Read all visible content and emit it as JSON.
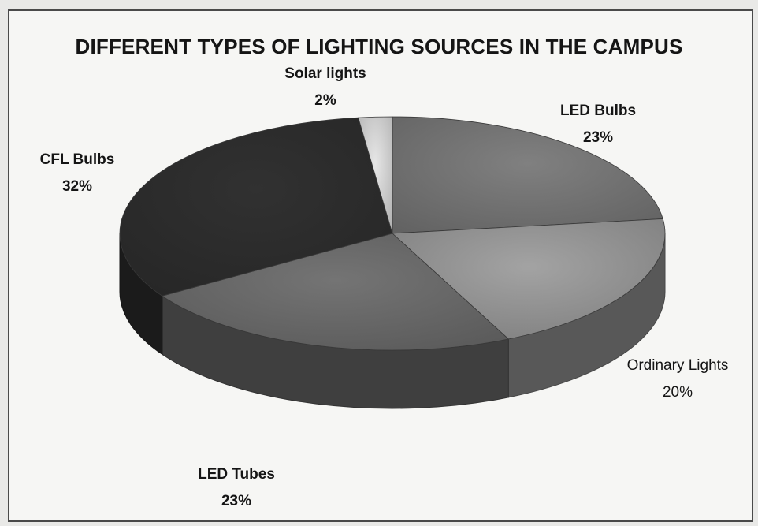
{
  "chart_data": {
    "type": "pie",
    "title": "DIFFERENT TYPES OF LIGHTING SOURCES IN THE CAMPUS",
    "three_d": true,
    "slices": [
      {
        "label": "LED Bulbs",
        "value": 23,
        "value_label": "23%",
        "color": "#6f6f6f"
      },
      {
        "label": "Ordinary Lights",
        "value": 20,
        "value_label": "20%",
        "color": "#8e8e8e"
      },
      {
        "label": "LED Tubes",
        "value": 23,
        "value_label": "23%",
        "color": "#656565"
      },
      {
        "label": "CFL Bulbs",
        "value": 32,
        "value_label": "32%",
        "color": "#2b2b2b"
      },
      {
        "label": "Solar lights",
        "value": 2,
        "value_label": "2%",
        "color": "#c8c8c8"
      }
    ]
  }
}
